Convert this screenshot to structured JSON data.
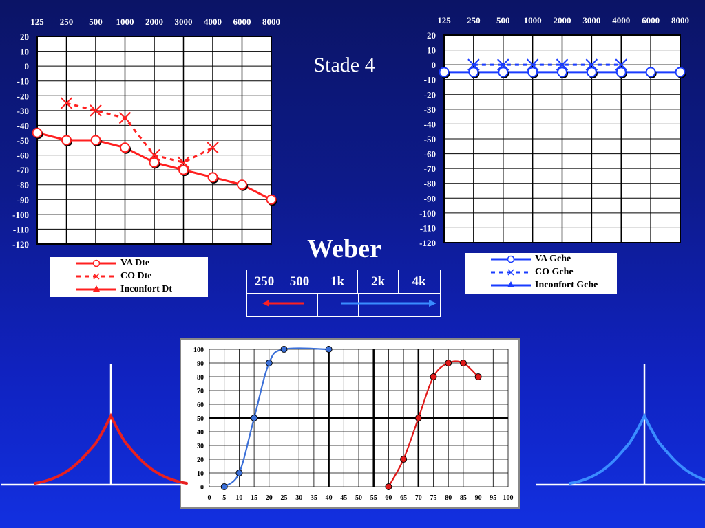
{
  "slide": {
    "title": "Stade 4",
    "weber_title": "Weber"
  },
  "chart_data": [
    {
      "id": "audiogram-right",
      "type": "line",
      "categories": [
        "125",
        "250",
        "500",
        "1000",
        "2000",
        "3000",
        "4000",
        "6000",
        "8000"
      ],
      "y_tick_labels": [
        "20",
        "10",
        "0",
        "-10",
        "-20",
        "-30",
        "-40",
        "-50",
        "-60",
        "-70",
        "-80",
        "-90",
        "-100",
        "-110",
        "-120"
      ],
      "ylim": [
        -120,
        20
      ],
      "grid": true,
      "color": "#ff2020",
      "series": [
        {
          "name": "VA Dte",
          "style": "solid",
          "marker": "circle",
          "x": [
            "125",
            "250",
            "500",
            "1000",
            "2000",
            "3000",
            "4000",
            "6000",
            "8000"
          ],
          "values": [
            -45,
            -50,
            -50,
            -55,
            -65,
            -70,
            -75,
            -80,
            -90
          ]
        },
        {
          "name": "CO  Dte",
          "style": "dashed",
          "marker": "x",
          "x": [
            "250",
            "500",
            "1000",
            "2000",
            "3000",
            "4000"
          ],
          "values": [
            -25,
            -30,
            -35,
            -60,
            -65,
            -55
          ]
        },
        {
          "name": "Inconfort Dt",
          "style": "solid",
          "marker": "triangle",
          "x": [],
          "values": []
        }
      ],
      "legend": [
        "VA Dte",
        "CO  Dte",
        "Inconfort Dt"
      ]
    },
    {
      "id": "audiogram-left",
      "type": "line",
      "categories": [
        "125",
        "250",
        "500",
        "1000",
        "2000",
        "3000",
        "4000",
        "6000",
        "8000"
      ],
      "y_tick_labels": [
        "20",
        "10",
        "0",
        "-10",
        "-20",
        "-30",
        "-40",
        "-50",
        "-60",
        "-70",
        "-80",
        "-90",
        "-100",
        "-110",
        "-120"
      ],
      "ylim": [
        -120,
        20
      ],
      "grid": true,
      "color": "#1a3cff",
      "series": [
        {
          "name": "VA Gche",
          "style": "solid",
          "marker": "circle",
          "x": [
            "125",
            "250",
            "500",
            "1000",
            "2000",
            "3000",
            "4000",
            "6000",
            "8000"
          ],
          "values": [
            -5,
            -5,
            -5,
            -5,
            -5,
            -5,
            -5,
            -5,
            -5
          ]
        },
        {
          "name": "CO  Gche",
          "style": "dashed",
          "marker": "x",
          "x": [
            "250",
            "500",
            "1000",
            "2000",
            "3000",
            "4000"
          ],
          "values": [
            0,
            0,
            0,
            0,
            0,
            0
          ]
        },
        {
          "name": "Inconfort Gche",
          "style": "solid",
          "marker": "triangle",
          "x": [],
          "values": []
        }
      ],
      "legend": [
        "VA Gche",
        "CO  Gche",
        "Inconfort Gche"
      ]
    },
    {
      "id": "percentage-chart",
      "type": "line",
      "x_tick_labels": [
        "0",
        "5",
        "10",
        "15",
        "20",
        "25",
        "30",
        "35",
        "40",
        "45",
        "50",
        "55",
        "60",
        "65",
        "70",
        "75",
        "80",
        "85",
        "90",
        "95",
        "100"
      ],
      "y_tick_labels": [
        "0",
        "10",
        "20",
        "30",
        "40",
        "50",
        "60",
        "70",
        "80",
        "90",
        "100"
      ],
      "xlim": [
        0,
        100
      ],
      "ylim": [
        0,
        100
      ],
      "grid": true,
      "series": [
        {
          "color": "#3a6fd8",
          "x": [
            5,
            10,
            15,
            20,
            25,
            40
          ],
          "values": [
            0,
            10,
            50,
            90,
            100,
            100
          ]
        },
        {
          "color": "#e01818",
          "x": [
            60,
            65,
            70,
            75,
            80,
            85,
            90
          ],
          "values": [
            0,
            20,
            50,
            80,
            90,
            90,
            80
          ]
        }
      ]
    }
  ],
  "weber": {
    "frequencies": [
      "250",
      "500",
      "1k",
      "2k",
      "4k"
    ],
    "left_arrow_color": "#ff2020",
    "right_arrow_color": "#3a8cff"
  },
  "colors": {
    "red": "#ff2020",
    "blue": "#1a3cff",
    "light_blue": "#3a8cff",
    "peak_red": "#e82020",
    "peak_blue": "#3a8cff"
  }
}
